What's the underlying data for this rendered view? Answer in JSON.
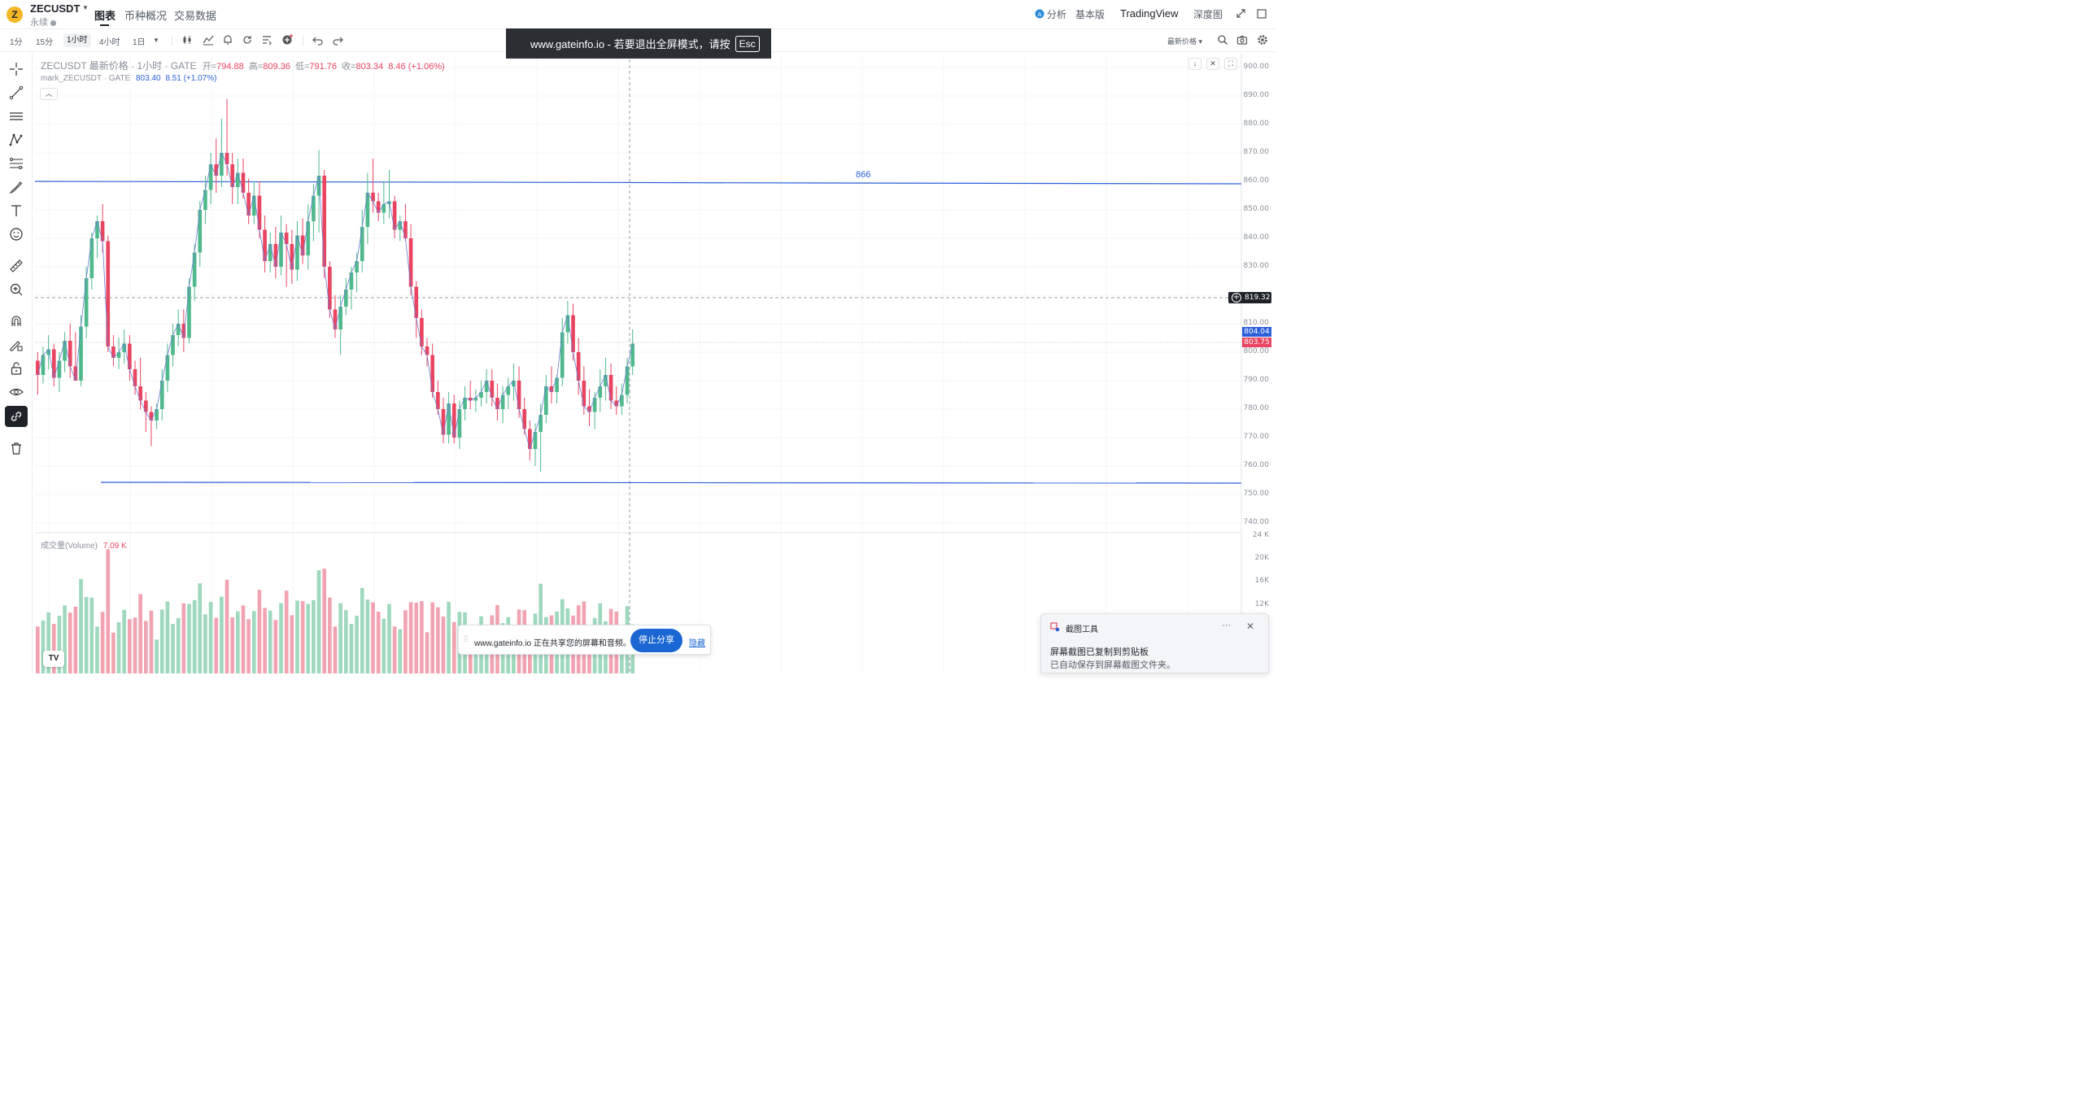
{
  "header": {
    "coin_logo_letter": "Z",
    "symbol": "ZECUSDT",
    "contract_type": "永续",
    "tabs": [
      "图表",
      "币种概况",
      "交易数据"
    ],
    "active_tab": "图表",
    "right_links": [
      "分析",
      "基本版",
      "TradingView",
      "深度图"
    ]
  },
  "toolbar": {
    "intervals": [
      "1分",
      "15分",
      "1小时",
      "4小时",
      "1日"
    ],
    "active_interval": "1小时",
    "price_source": "最新价格"
  },
  "legend": {
    "main_title": "ZECUSDT 最新价格 · 1小时 · GATE",
    "open_label": "开=",
    "open": "794.88",
    "high_label": "高=",
    "high": "809.36",
    "low_label": "低=",
    "low": "791.76",
    "close_label": "收=",
    "close": "803.34",
    "change": "8.46 (+1.06%)",
    "mark_title": "mark_ZECUSDT · GATE",
    "mark_price": "803.40",
    "mark_change": "8.51 (+1.07%)",
    "volume_title": "成交量(Volume)",
    "volume_value": "7.09 K"
  },
  "price_axis": {
    "labels": [
      "900.00",
      "890.00",
      "880.00",
      "870.00",
      "860.00",
      "850.00",
      "840.00",
      "830.00",
      "810.00",
      "800.00",
      "790.00",
      "780.00",
      "770.00",
      "760.00",
      "750.00",
      "740.00"
    ],
    "crosshair_price": "819.32",
    "last_price": "804.04",
    "last_price_color": "#2b5fd9",
    "mark_price": "803.75",
    "mark_price_color": "#e94560"
  },
  "volume_axis": {
    "labels": [
      "24 K",
      "20K",
      "16K",
      "12K"
    ]
  },
  "drawings": {
    "upper_line_label": "866"
  },
  "fullscreen_banner": {
    "text": "www.gateinfo.io - 若要退出全屏模式，请按",
    "key": "Esc"
  },
  "share_bar": {
    "text": "www.gateinfo.io 正在共享您的屏幕和音频。",
    "stop_label": "停止分享",
    "hide_label": "隐藏"
  },
  "snip_toast": {
    "app_name": "截图工具",
    "title": "屏幕截图已复制到剪贴板",
    "body": "已自动保存到屏幕截图文件夹。"
  },
  "tv_logo_text": "TV",
  "colors": {
    "up": "#4fb98c",
    "down": "#e94560",
    "up_vol": "#9ed8bd",
    "down_vol": "#f2a3b1",
    "drawing_line": "#2b5fd9"
  },
  "chart_data": {
    "type": "candlestick",
    "title": "",
    "ylim": [
      738,
      903
    ],
    "candles": [
      [
        797,
        800,
        785,
        792
      ],
      [
        792,
        802,
        789,
        799
      ],
      [
        799,
        806,
        794,
        801
      ],
      [
        801,
        803,
        788,
        791
      ],
      [
        791,
        800,
        786,
        797
      ],
      [
        797,
        807,
        793,
        804
      ],
      [
        804,
        810,
        791,
        795
      ],
      [
        795,
        807,
        790,
        790
      ],
      [
        790,
        813,
        788,
        809
      ],
      [
        809,
        830,
        805,
        826
      ],
      [
        826,
        842,
        822,
        840
      ],
      [
        840,
        848,
        833,
        846
      ],
      [
        846,
        852,
        835,
        839
      ],
      [
        839,
        841,
        800,
        802
      ],
      [
        802,
        806,
        795,
        798
      ],
      [
        798,
        805,
        794,
        800
      ],
      [
        800,
        808,
        796,
        803
      ],
      [
        803,
        806,
        790,
        794
      ],
      [
        794,
        797,
        785,
        788
      ],
      [
        788,
        798,
        780,
        783
      ],
      [
        783,
        786,
        772,
        779
      ],
      [
        779,
        781,
        767,
        776
      ],
      [
        776,
        782,
        773,
        780
      ],
      [
        780,
        794,
        776,
        790
      ],
      [
        790,
        803,
        786,
        799
      ],
      [
        799,
        810,
        795,
        806
      ],
      [
        806,
        815,
        802,
        810
      ],
      [
        810,
        815,
        800,
        805
      ],
      [
        805,
        826,
        803,
        823
      ],
      [
        823,
        838,
        818,
        835
      ],
      [
        835,
        853,
        830,
        850
      ],
      [
        850,
        862,
        845,
        857
      ],
      [
        857,
        870,
        852,
        866
      ],
      [
        866,
        875,
        856,
        862
      ],
      [
        862,
        882,
        858,
        870
      ],
      [
        870,
        889,
        862,
        866
      ],
      [
        866,
        870,
        852,
        858
      ],
      [
        858,
        868,
        852,
        863
      ],
      [
        863,
        868,
        854,
        856
      ],
      [
        856,
        861,
        845,
        848
      ],
      [
        848,
        860,
        845,
        855
      ],
      [
        855,
        860,
        840,
        843
      ],
      [
        843,
        848,
        828,
        832
      ],
      [
        832,
        842,
        828,
        838
      ],
      [
        838,
        844,
        826,
        830
      ],
      [
        830,
        848,
        827,
        842
      ],
      [
        842,
        845,
        823,
        838
      ],
      [
        838,
        843,
        824,
        829
      ],
      [
        829,
        846,
        825,
        841
      ],
      [
        841,
        847,
        831,
        834
      ],
      [
        834,
        852,
        829,
        846
      ],
      [
        846,
        859,
        839,
        855
      ],
      [
        855,
        871,
        842,
        862
      ],
      [
        862,
        864,
        826,
        830
      ],
      [
        830,
        832,
        812,
        815
      ],
      [
        815,
        820,
        805,
        808
      ],
      [
        808,
        820,
        799,
        816
      ],
      [
        816,
        826,
        813,
        822
      ],
      [
        822,
        830,
        815,
        828
      ],
      [
        828,
        835,
        821,
        832
      ],
      [
        832,
        850,
        828,
        844
      ],
      [
        844,
        863,
        838,
        856
      ],
      [
        856,
        868,
        849,
        853
      ],
      [
        853,
        856,
        846,
        849
      ],
      [
        849,
        860,
        845,
        852
      ],
      [
        852,
        864,
        847,
        853
      ],
      [
        853,
        855,
        840,
        843
      ],
      [
        843,
        848,
        839,
        846
      ],
      [
        846,
        852,
        839,
        840
      ],
      [
        840,
        845,
        820,
        823
      ],
      [
        823,
        825,
        805,
        812
      ],
      [
        812,
        815,
        799,
        802
      ],
      [
        802,
        805,
        795,
        799
      ],
      [
        799,
        803,
        784,
        786
      ],
      [
        786,
        790,
        778,
        780
      ],
      [
        780,
        784,
        768,
        771
      ],
      [
        771,
        786,
        768,
        782
      ],
      [
        782,
        785,
        768,
        770
      ],
      [
        770,
        783,
        766,
        780
      ],
      [
        780,
        788,
        776,
        784
      ],
      [
        784,
        790,
        780,
        783
      ],
      [
        783,
        787,
        779,
        784
      ],
      [
        784,
        790,
        781,
        786
      ],
      [
        786,
        794,
        782,
        790
      ],
      [
        790,
        794,
        781,
        784
      ],
      [
        784,
        789,
        776,
        780
      ],
      [
        780,
        788,
        775,
        785
      ],
      [
        785,
        791,
        780,
        788
      ],
      [
        788,
        796,
        783,
        790
      ],
      [
        790,
        795,
        777,
        780
      ],
      [
        780,
        784,
        771,
        773
      ],
      [
        773,
        776,
        762,
        766
      ],
      [
        766,
        775,
        760,
        772
      ],
      [
        772,
        782,
        758,
        778
      ],
      [
        778,
        792,
        775,
        788
      ],
      [
        788,
        795,
        782,
        786
      ],
      [
        786,
        792,
        782,
        791
      ],
      [
        791,
        812,
        788,
        807
      ],
      [
        807,
        818,
        803,
        813
      ],
      [
        813,
        817,
        797,
        800
      ],
      [
        800,
        805,
        785,
        790
      ],
      [
        790,
        795,
        778,
        781
      ],
      [
        781,
        787,
        774,
        779
      ],
      [
        779,
        786,
        773,
        784
      ],
      [
        784,
        794,
        779,
        788
      ],
      [
        788,
        798,
        783,
        792
      ],
      [
        792,
        796,
        780,
        783
      ],
      [
        783,
        788,
        778,
        781
      ],
      [
        781,
        789,
        778,
        785
      ],
      [
        785,
        798,
        782,
        795
      ],
      [
        795,
        808,
        792,
        803
      ]
    ],
    "volume_unit": "K",
    "volume_ylim": [
      0,
      24
    ]
  }
}
